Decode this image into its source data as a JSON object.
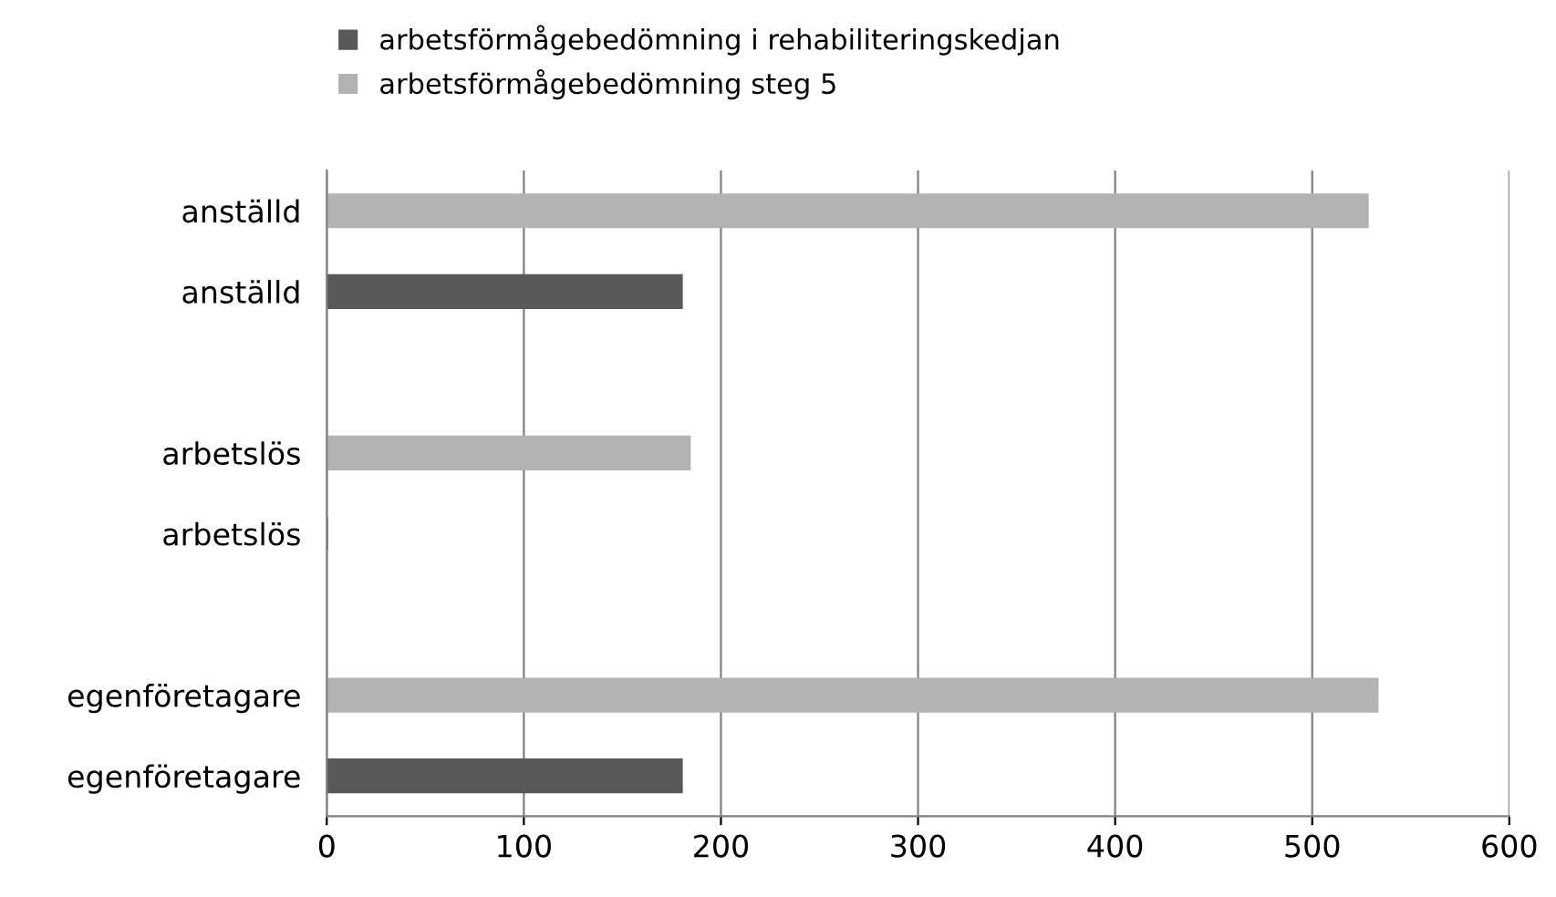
{
  "chart_data": {
    "type": "bar",
    "orientation": "horizontal",
    "categories": [
      "anställd",
      "anställd",
      null,
      "arbetslös",
      "arbetslös",
      null,
      "egenföretagare",
      "egenföretagare"
    ],
    "series": [
      {
        "name": "arbetsförmågebedömning i rehabiliteringskedjan",
        "color": "#595959",
        "values": [
          null,
          180,
          null,
          null,
          0,
          null,
          null,
          180
        ]
      },
      {
        "name": "arbetsförmågebedömning steg 5",
        "color": "#b3b3b3",
        "values": [
          528,
          null,
          null,
          184,
          null,
          null,
          533,
          null
        ]
      }
    ],
    "xlim": [
      0,
      600
    ],
    "xticks": [
      0,
      100,
      200,
      300,
      400,
      500,
      600
    ],
    "grid": "x",
    "legend": "top"
  }
}
